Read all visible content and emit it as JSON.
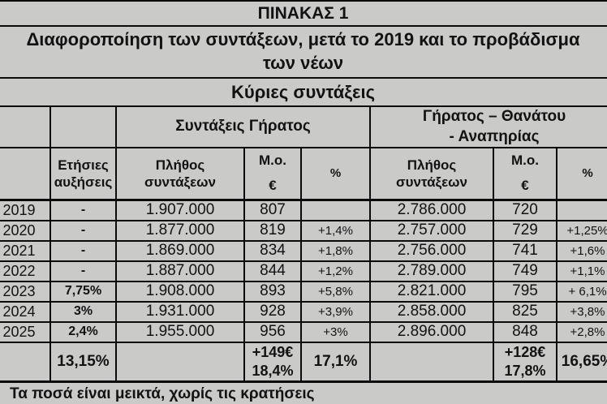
{
  "title": "ΠΙΝΑΚΑΣ 1",
  "subtitle": "Διαφοροποίηση των συντάξεων, μετά το 2019 και το προβάδισμα\nτων νέων",
  "section": "Κύριες συντάξεις",
  "groups": [
    {
      "label": "Συντάξεις Γήρατος"
    },
    {
      "label": "Γήρατος – Θανάτου\n- Αναπηρίας"
    }
  ],
  "columns": {
    "annual_increases": "Ετήσιες\nαυξήσεις",
    "count": "Πλήθος\nσυντάξεων",
    "avg_euro": "Μ.ο.\n€",
    "pct": "%"
  },
  "rows": [
    {
      "year": "2019",
      "increase": "-",
      "old_count": "1.907.000",
      "old_avg": "807",
      "old_pct": "",
      "surv_count": "2.786.000",
      "surv_avg": "720",
      "surv_pct": ""
    },
    {
      "year": "2020",
      "increase": "-",
      "old_count": "1.877.000",
      "old_avg": "819",
      "old_pct": "+1,4%",
      "surv_count": "2.757.000",
      "surv_avg": "729",
      "surv_pct": "+1,25%"
    },
    {
      "year": "2021",
      "increase": "-",
      "old_count": "1.869.000",
      "old_avg": "834",
      "old_pct": "+1,8%",
      "surv_count": "2.756.000",
      "surv_avg": "741",
      "surv_pct": "+1,6%"
    },
    {
      "year": "2022",
      "increase": "-",
      "old_count": "1.887.000",
      "old_avg": "844",
      "old_pct": "+1,2%",
      "surv_count": "2.789.000",
      "surv_avg": "749",
      "surv_pct": "+1,1%"
    },
    {
      "year": "2023",
      "increase": "7,75%",
      "old_count": "1.908.000",
      "old_avg": "893",
      "old_pct": "+5,8%",
      "surv_count": "2.821.000",
      "surv_avg": "795",
      "surv_pct": "+ 6,1%"
    },
    {
      "year": "2024",
      "increase": "3%",
      "old_count": "1.931.000",
      "old_avg": "928",
      "old_pct": "+3,9%",
      "surv_count": "2.858.000",
      "surv_avg": "825",
      "surv_pct": "+3,8%"
    },
    {
      "year": "2025",
      "increase": "2,4%",
      "old_count": "1.955.000",
      "old_avg": "956",
      "old_pct": "+3%",
      "surv_count": "2.896.000",
      "surv_avg": "848",
      "surv_pct": "+2,8%"
    }
  ],
  "summary": {
    "year": "",
    "increase": "13,15%",
    "old_count": "",
    "old_avg": "+149€\n18,4%",
    "old_pct": "17,1%",
    "surv_count": "",
    "surv_avg": "+128€\n17,8%",
    "surv_pct": "16,65%"
  },
  "footer": "Τα ποσά είναι μεικτά, χωρίς τις κρατήσεις",
  "colors": {
    "background": "#cacbc9",
    "border": "#0b0b0b",
    "text": "#121212"
  }
}
